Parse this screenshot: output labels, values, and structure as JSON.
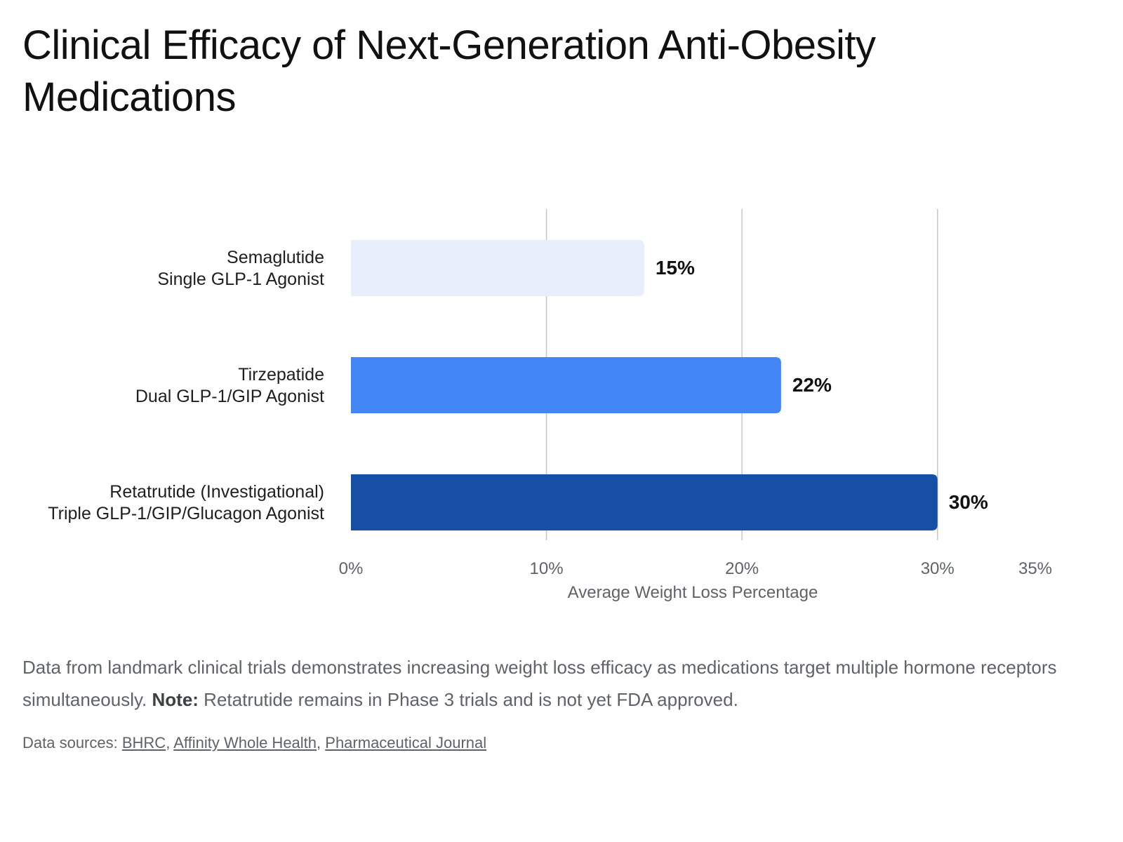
{
  "title": "Clinical Efficacy of Next-Generation Anti-Obesity Medications",
  "colors": {
    "grid": "#c6c6c6",
    "tick_text": "#5f6368",
    "label_text": "#1f1f1f",
    "value_text": "#111111"
  },
  "chart_data": {
    "type": "bar",
    "orientation": "horizontal",
    "categories": [
      {
        "name": "Semaglutide",
        "subtitle": "Single GLP-1 Agonist"
      },
      {
        "name": "Tirzepatide",
        "subtitle": "Dual GLP-1/GIP Agonist"
      },
      {
        "name": "Retatrutide (Investigational)",
        "subtitle": "Triple GLP-1/GIP/Glucagon Agonist"
      }
    ],
    "values": [
      15,
      22,
      30
    ],
    "value_labels": [
      "15%",
      "22%",
      "30%"
    ],
    "bar_colors": [
      "#e8effc",
      "#4285f4",
      "#174ea6"
    ],
    "xlabel": "Average Weight Loss Percentage",
    "xlim": [
      0,
      35
    ],
    "xticks": [
      0,
      10,
      20,
      30,
      35
    ],
    "xtick_labels": [
      "0%",
      "10%",
      "20%",
      "30%",
      "35%"
    ],
    "gridlines_at": [
      10,
      20,
      30
    ],
    "grid": true
  },
  "description": {
    "text": "Data from landmark clinical trials demonstrates increasing weight loss efficacy as medications target multiple hormone receptors simultaneously.",
    "note_label": "Note:",
    "note_text": "Retatrutide remains in Phase 3 trials and is not yet FDA approved."
  },
  "sources": {
    "prefix": "Data sources:",
    "links": [
      "BHRC",
      "Affinity Whole Health",
      "Pharmaceutical Journal"
    ]
  }
}
